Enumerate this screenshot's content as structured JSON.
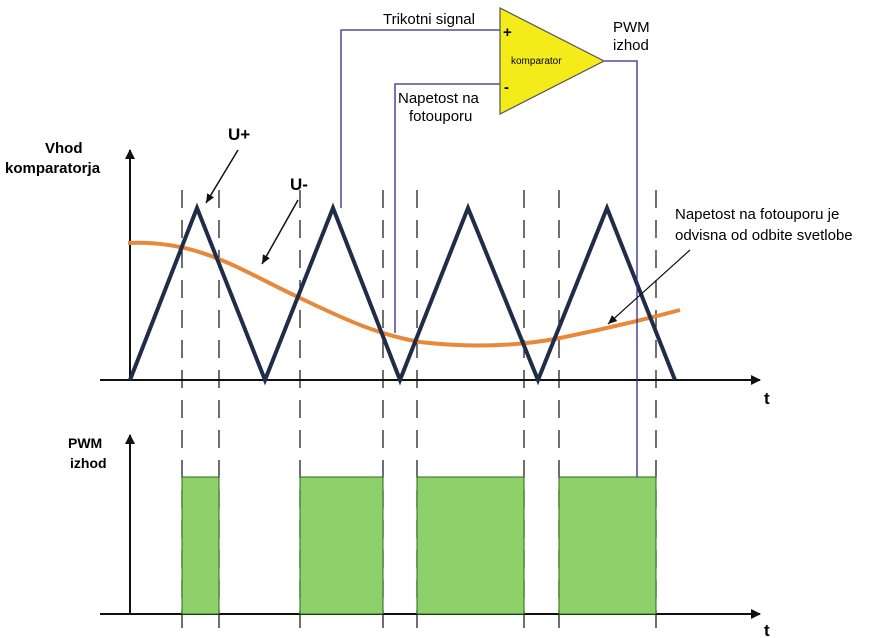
{
  "labels": {
    "y_axis_top": [
      "Vhod",
      "komparatorja"
    ],
    "y_axis_bottom": [
      "PWM",
      "izhod"
    ],
    "x_axis_top": "t",
    "x_axis_bottom": "t",
    "u_plus": "U+",
    "u_minus": "U-",
    "note": [
      "Napetost na fotouporu je",
      "odvisna od odbite svetlobe"
    ],
    "comparator_plus_input": "Trikotni signal",
    "comparator_minus_input": [
      "Napetost na",
      "fotouporu"
    ],
    "comparator_output": [
      "PWM",
      "izhod"
    ],
    "comparator_name": "komparator",
    "plus_sign": "+",
    "minus_sign": "-"
  },
  "colors": {
    "triangle": "#1f2d48",
    "photoresistor_curve": "#e8883a",
    "pwm_fill": "#8ed06a",
    "pwm_stroke": "#2a6a1a",
    "comparator_fill": "#f4ec1a",
    "wire": "#2b2b8a",
    "axis": "#111111",
    "dashes": "#222222"
  }
}
